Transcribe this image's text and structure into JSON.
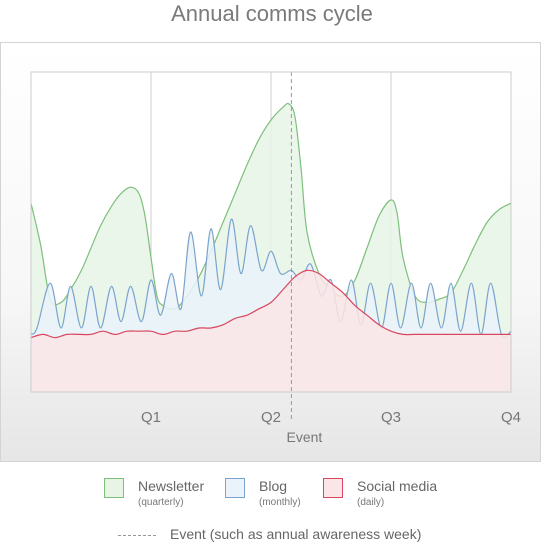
{
  "chart_data": {
    "type": "area",
    "title": "Annual comms cycle",
    "x_ticks": [
      "Q1",
      "Q2",
      "Q3",
      "Q4"
    ],
    "xlabel": "Event",
    "xlim": [
      0,
      4
    ],
    "ylim": [
      0,
      100
    ],
    "grid": true,
    "series": [
      {
        "name": "Newsletter",
        "note": "(quarterly)",
        "color": "#7dbf7d",
        "fill": "#e8f5e6",
        "x": [
          0,
          0.08,
          0.16,
          0.25,
          0.33,
          0.42,
          0.5,
          0.58,
          0.67,
          0.75,
          0.83,
          0.9,
          0.95,
          1.0,
          1.05,
          1.1,
          1.2,
          1.3,
          1.4,
          1.5,
          1.6,
          1.7,
          1.8,
          1.9,
          2.0,
          2.1,
          2.15,
          2.2,
          2.25,
          2.3,
          2.4,
          2.5,
          2.6,
          2.7,
          2.8,
          2.9,
          3.0,
          3.05,
          3.1,
          3.2,
          3.3,
          3.4,
          3.5,
          3.6,
          3.7,
          3.8,
          3.9,
          4.0
        ],
        "values": [
          59,
          46,
          29,
          28,
          32,
          38,
          45,
          52,
          58,
          62,
          64,
          62,
          55,
          42,
          30,
          27,
          26,
          30,
          36,
          44,
          53,
          62,
          71,
          79,
          85,
          89,
          90,
          86,
          70,
          50,
          37,
          32,
          30,
          35,
          45,
          55,
          60,
          56,
          42,
          30,
          28,
          29,
          31,
          38,
          46,
          53,
          57,
          59
        ]
      },
      {
        "name": "Blog",
        "note": "(monthly)",
        "color": "#7ba4cc",
        "fill": "#eaf3fa",
        "x": [
          0,
          0.05,
          0.16,
          0.25,
          0.33,
          0.42,
          0.5,
          0.58,
          0.67,
          0.75,
          0.83,
          0.92,
          1.0,
          1.08,
          1.17,
          1.25,
          1.33,
          1.42,
          1.5,
          1.58,
          1.67,
          1.75,
          1.83,
          1.92,
          2.0,
          2.08,
          2.17,
          2.25,
          2.33,
          2.42,
          2.5,
          2.58,
          2.67,
          2.75,
          2.83,
          2.92,
          3.0,
          3.08,
          3.17,
          3.25,
          3.33,
          3.42,
          3.5,
          3.58,
          3.67,
          3.75,
          3.83,
          3.92,
          4.0
        ],
        "values": [
          18,
          20,
          34,
          20,
          33,
          20,
          33,
          20,
          33,
          22,
          33,
          22,
          35,
          24,
          37,
          26,
          50,
          30,
          51,
          32,
          54,
          37,
          52,
          38,
          44,
          37,
          38,
          35,
          40,
          30,
          35,
          22,
          35,
          21,
          34,
          20,
          34,
          20,
          34,
          20,
          34,
          20,
          34,
          19,
          34,
          18,
          34,
          18,
          19
        ]
      },
      {
        "name": "Social media",
        "note": "(daily)",
        "color": "#d9465e",
        "fill": "#fbe5e8",
        "x": [
          0,
          0.1,
          0.2,
          0.3,
          0.4,
          0.5,
          0.6,
          0.7,
          0.8,
          0.9,
          1.0,
          1.1,
          1.2,
          1.3,
          1.4,
          1.5,
          1.6,
          1.7,
          1.8,
          1.9,
          2.0,
          2.1,
          2.2,
          2.3,
          2.4,
          2.5,
          2.6,
          2.7,
          2.8,
          2.9,
          3.0,
          3.1,
          3.2,
          3.3,
          3.4,
          3.5,
          3.6,
          3.7,
          3.8,
          3.9,
          4.0
        ],
        "values": [
          17,
          18,
          17,
          18,
          18,
          18,
          19,
          18,
          19,
          19,
          19,
          18,
          19,
          19,
          20,
          20,
          21,
          23,
          24,
          26,
          28,
          32,
          36,
          38,
          37,
          34,
          31,
          27,
          24,
          21,
          19,
          18,
          18,
          18,
          18,
          18,
          18,
          18,
          18,
          18,
          18
        ]
      }
    ],
    "annotations": [
      {
        "type": "vline",
        "x": 2.17,
        "style": "dashed"
      }
    ]
  },
  "legend": {
    "items": [
      {
        "name": "Newsletter",
        "note": "(quarterly)",
        "color": "#7dbf7d",
        "fill": "#e8f5e6"
      },
      {
        "name": "Blog",
        "note": "(monthly)",
        "color": "#7ba4cc",
        "fill": "#eaf3fa"
      },
      {
        "name": "Social media",
        "note": "(daily)",
        "color": "#d9465e",
        "fill": "#fbe5e8"
      }
    ],
    "event_label": "Event (such as annual awareness week)"
  }
}
